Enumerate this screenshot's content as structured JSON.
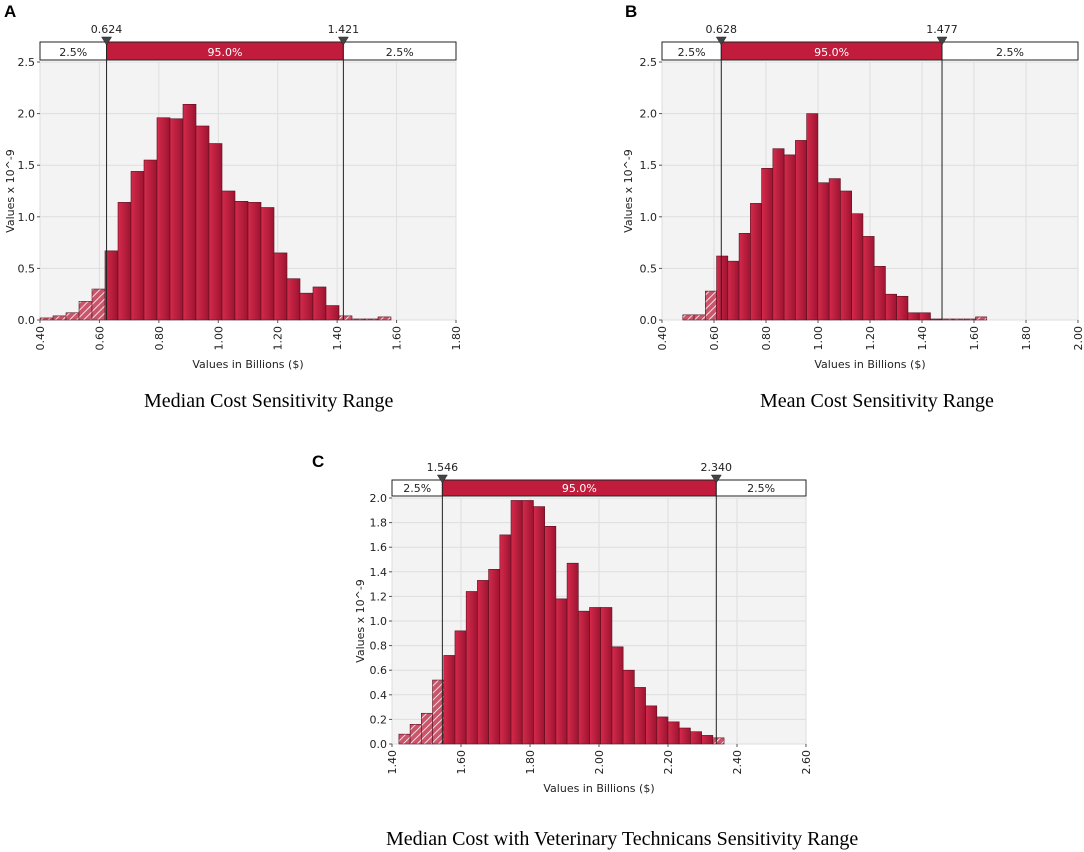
{
  "panels": [
    {
      "label": "A",
      "caption": "Median Cost Sensitivity Range"
    },
    {
      "label": "B",
      "caption": "Mean Cost Sensitivity Range"
    },
    {
      "label": "C",
      "caption": "Median Cost with Veterinary Technicans Sensitivity Range"
    }
  ],
  "colors": {
    "bar": "#b8193b",
    "bar_edge": "#5a0f1f",
    "band": "#c21c3c",
    "plot_bg": "#f3f3f3",
    "grid": "#dedede"
  },
  "chart_data": [
    {
      "type": "bar",
      "title": "",
      "xlabel": "Values in Billions ($)",
      "ylabel": "Values x 10^-9",
      "xlim": [
        0.4,
        1.8
      ],
      "ylim": [
        0,
        2.5
      ],
      "xticks": [
        "0.40",
        "0.60",
        "0.80",
        "1.00",
        "1.20",
        "1.40",
        "1.60",
        "1.80"
      ],
      "yticks": [
        "0.0",
        "0.5",
        "1.0",
        "1.5",
        "2.0",
        "2.5"
      ],
      "bin_start": 0.4,
      "bin_width": 0.04375,
      "values": [
        0.02,
        0.04,
        0.07,
        0.18,
        0.3,
        0.67,
        1.14,
        1.44,
        1.55,
        1.96,
        1.95,
        2.09,
        1.88,
        1.71,
        1.25,
        1.15,
        1.14,
        1.09,
        0.65,
        0.4,
        0.26,
        0.32,
        0.14,
        0.04,
        0.01,
        0.01,
        0.03,
        0.0
      ],
      "lower_cut": {
        "label": "0.624",
        "value": 0.624
      },
      "upper_cut": {
        "label": "1.421",
        "value": 1.421
      },
      "band_left": "2.5%",
      "band_mid": "95.0%",
      "band_right": "2.5%"
    },
    {
      "type": "bar",
      "title": "",
      "xlabel": "Values in Billions ($)",
      "ylabel": "Values x 10^-9",
      "xlim": [
        0.4,
        2.0
      ],
      "ylim": [
        0,
        2.5
      ],
      "xticks": [
        "0.40",
        "0.60",
        "0.80",
        "1.00",
        "1.20",
        "1.40",
        "1.60",
        "1.80",
        "2.00"
      ],
      "yticks": [
        "0.0",
        "0.5",
        "1.0",
        "1.5",
        "2.0",
        "2.5"
      ],
      "bin_start": 0.48,
      "bin_width": 0.0433,
      "values": [
        0.05,
        0.05,
        0.28,
        0.62,
        0.57,
        0.84,
        1.13,
        1.47,
        1.66,
        1.6,
        1.74,
        2.0,
        1.33,
        1.37,
        1.25,
        1.03,
        0.81,
        0.52,
        0.25,
        0.23,
        0.07,
        0.07,
        0.01,
        0.01,
        0.01,
        0.01,
        0.03
      ],
      "lower_cut": {
        "label": "0.628",
        "value": 0.628
      },
      "upper_cut": {
        "label": "1.477",
        "value": 1.477
      },
      "band_left": "2.5%",
      "band_mid": "95.0%",
      "band_right": "2.5%"
    },
    {
      "type": "bar",
      "title": "",
      "xlabel": "Values in Billions ($)",
      "ylabel": "Values x 10^-9",
      "xlim": [
        1.4,
        2.6
      ],
      "ylim": [
        0,
        2.0
      ],
      "xticks": [
        "1.40",
        "1.60",
        "1.80",
        "2.00",
        "2.20",
        "2.40",
        "2.60"
      ],
      "yticks": [
        "0.0",
        "0.2",
        "0.4",
        "0.6",
        "0.8",
        "1.0",
        "1.2",
        "1.4",
        "1.6",
        "1.8",
        "2.0"
      ],
      "bin_start": 1.42,
      "bin_width": 0.0325,
      "values": [
        0.08,
        0.16,
        0.25,
        0.52,
        0.72,
        0.92,
        1.24,
        1.33,
        1.42,
        1.7,
        1.98,
        1.98,
        1.93,
        1.77,
        1.18,
        1.47,
        1.08,
        1.11,
        1.11,
        0.79,
        0.6,
        0.46,
        0.31,
        0.22,
        0.18,
        0.13,
        0.1,
        0.07,
        0.05
      ],
      "lower_cut": {
        "label": "1.546",
        "value": 1.546
      },
      "upper_cut": {
        "label": "2.340",
        "value": 2.34
      },
      "band_left": "2.5%",
      "band_mid": "95.0%",
      "band_right": "2.5%"
    }
  ]
}
